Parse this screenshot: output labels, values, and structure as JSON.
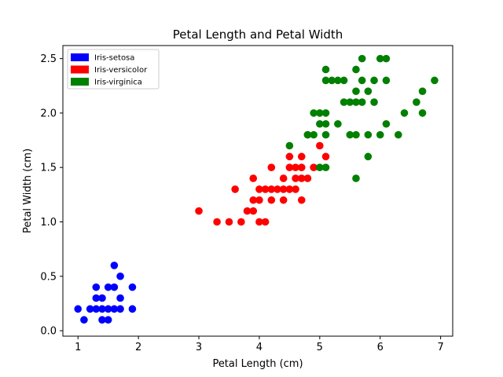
{
  "chart_data": {
    "type": "scatter",
    "title": "Petal Length and Petal Width",
    "xlabel": "Petal Length (cm)",
    "ylabel": "Petal Width (cm)",
    "xlim": [
      0.75,
      7.2
    ],
    "ylim": [
      -0.05,
      2.62
    ],
    "xticks": [
      1,
      2,
      3,
      4,
      5,
      6,
      7
    ],
    "xtick_labels": [
      "1",
      "2",
      "3",
      "4",
      "5",
      "6",
      "7"
    ],
    "yticks": [
      0.0,
      0.5,
      1.0,
      1.5,
      2.0,
      2.5
    ],
    "ytick_labels": [
      "0.0",
      "0.5",
      "1.0",
      "1.5",
      "2.0",
      "2.5"
    ],
    "grid": false,
    "legend_position": "top-left",
    "series": [
      {
        "name": "Iris-setosa",
        "color": "#0000ff",
        "points": [
          [
            1.0,
            0.2
          ],
          [
            1.1,
            0.1
          ],
          [
            1.2,
            0.2
          ],
          [
            1.3,
            0.2
          ],
          [
            1.3,
            0.3
          ],
          [
            1.3,
            0.4
          ],
          [
            1.4,
            0.1
          ],
          [
            1.4,
            0.2
          ],
          [
            1.4,
            0.3
          ],
          [
            1.5,
            0.1
          ],
          [
            1.5,
            0.2
          ],
          [
            1.5,
            0.4
          ],
          [
            1.6,
            0.2
          ],
          [
            1.6,
            0.4
          ],
          [
            1.6,
            0.6
          ],
          [
            1.7,
            0.2
          ],
          [
            1.7,
            0.3
          ],
          [
            1.7,
            0.5
          ],
          [
            1.9,
            0.2
          ],
          [
            1.9,
            0.4
          ]
        ]
      },
      {
        "name": "Iris-versicolor",
        "color": "#ff0000",
        "points": [
          [
            3.0,
            1.1
          ],
          [
            3.3,
            1.0
          ],
          [
            3.5,
            1.0
          ],
          [
            3.6,
            1.3
          ],
          [
            3.7,
            1.0
          ],
          [
            3.8,
            1.1
          ],
          [
            3.9,
            1.1
          ],
          [
            3.9,
            1.2
          ],
          [
            3.9,
            1.4
          ],
          [
            4.0,
            1.0
          ],
          [
            4.0,
            1.2
          ],
          [
            4.0,
            1.3
          ],
          [
            4.1,
            1.0
          ],
          [
            4.1,
            1.3
          ],
          [
            4.2,
            1.2
          ],
          [
            4.2,
            1.3
          ],
          [
            4.2,
            1.5
          ],
          [
            4.3,
            1.3
          ],
          [
            4.4,
            1.2
          ],
          [
            4.4,
            1.3
          ],
          [
            4.4,
            1.4
          ],
          [
            4.5,
            1.3
          ],
          [
            4.5,
            1.5
          ],
          [
            4.5,
            1.6
          ],
          [
            4.6,
            1.3
          ],
          [
            4.6,
            1.4
          ],
          [
            4.6,
            1.5
          ],
          [
            4.7,
            1.2
          ],
          [
            4.7,
            1.4
          ],
          [
            4.7,
            1.5
          ],
          [
            4.7,
            1.6
          ],
          [
            4.8,
            1.4
          ],
          [
            4.8,
            1.8
          ],
          [
            4.9,
            1.5
          ],
          [
            5.0,
            1.7
          ],
          [
            5.1,
            1.6
          ]
        ]
      },
      {
        "name": "Iris-virginica",
        "color": "#008000",
        "points": [
          [
            4.5,
            1.7
          ],
          [
            4.8,
            1.8
          ],
          [
            4.9,
            1.8
          ],
          [
            4.9,
            2.0
          ],
          [
            5.0,
            1.5
          ],
          [
            5.0,
            1.9
          ],
          [
            5.0,
            2.0
          ],
          [
            5.1,
            1.5
          ],
          [
            5.1,
            1.8
          ],
          [
            5.1,
            1.9
          ],
          [
            5.1,
            2.0
          ],
          [
            5.1,
            2.3
          ],
          [
            5.1,
            2.4
          ],
          [
            5.2,
            2.3
          ],
          [
            5.3,
            1.9
          ],
          [
            5.3,
            2.3
          ],
          [
            5.4,
            2.1
          ],
          [
            5.4,
            2.3
          ],
          [
            5.5,
            1.8
          ],
          [
            5.5,
            2.1
          ],
          [
            5.6,
            1.4
          ],
          [
            5.6,
            1.8
          ],
          [
            5.6,
            2.1
          ],
          [
            5.6,
            2.2
          ],
          [
            5.6,
            2.4
          ],
          [
            5.7,
            2.1
          ],
          [
            5.7,
            2.3
          ],
          [
            5.7,
            2.5
          ],
          [
            5.8,
            1.6
          ],
          [
            5.8,
            1.8
          ],
          [
            5.8,
            2.2
          ],
          [
            5.9,
            2.1
          ],
          [
            5.9,
            2.3
          ],
          [
            6.0,
            1.8
          ],
          [
            6.0,
            2.5
          ],
          [
            6.1,
            1.9
          ],
          [
            6.1,
            2.3
          ],
          [
            6.1,
            2.5
          ],
          [
            6.3,
            1.8
          ],
          [
            6.4,
            2.0
          ],
          [
            6.6,
            2.1
          ],
          [
            6.7,
            2.0
          ],
          [
            6.7,
            2.2
          ],
          [
            6.9,
            2.3
          ]
        ]
      }
    ]
  }
}
